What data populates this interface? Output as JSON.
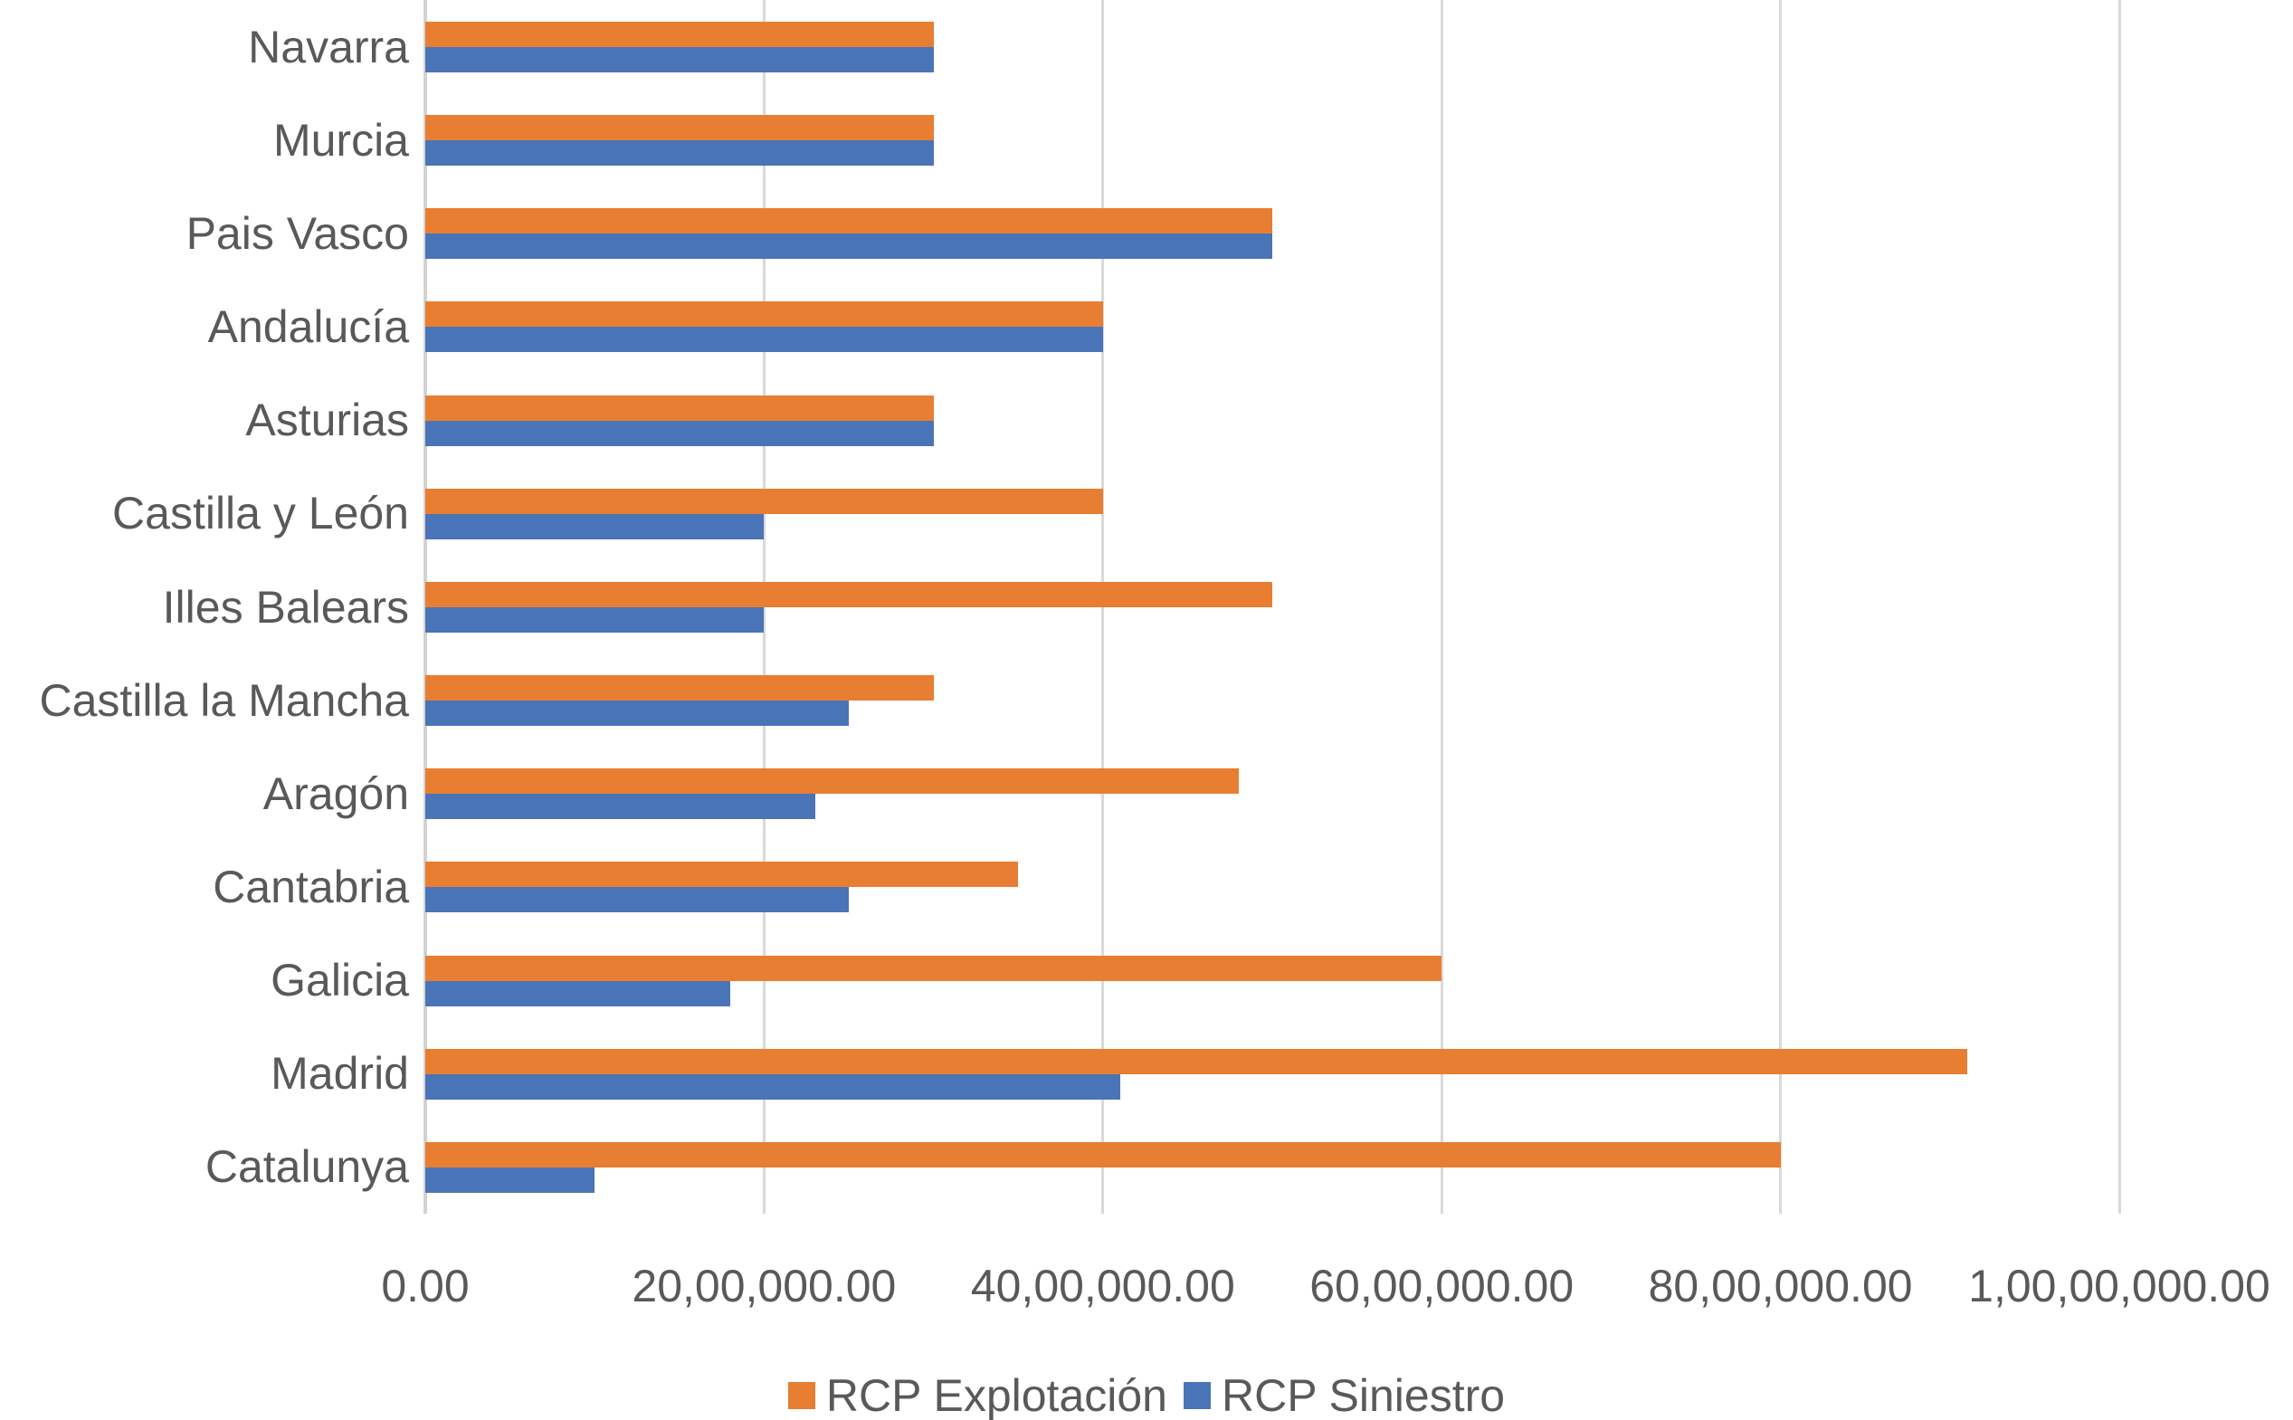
{
  "chart_data": {
    "type": "bar",
    "orientation": "horizontal",
    "title": "",
    "categories": [
      "Navarra",
      "Murcia",
      "Pais Vasco",
      "Andalucía",
      "Asturias",
      "Castilla y León",
      "Illes Balears",
      "Castilla la Mancha",
      "Aragón",
      "Cantabria",
      "Galicia",
      "Madrid",
      "Catalunya"
    ],
    "series": [
      {
        "name": "RCP Explotación",
        "color": "#e87e31",
        "values": [
          3000000,
          3000000,
          5000000,
          4000000,
          3000000,
          4000000,
          5000000,
          3000000,
          4800000,
          3500000,
          6000000,
          9100000,
          8000000
        ]
      },
      {
        "name": "RCP Siniestro",
        "color": "#4a74b8",
        "values": [
          3000000,
          3000000,
          5000000,
          4000000,
          3000000,
          2000000,
          2000000,
          2500000,
          2300000,
          2500000,
          1800000,
          4100000,
          1000000
        ]
      }
    ],
    "x_axis": {
      "min": 0,
      "max": 10000000,
      "tick_interval": 2000000,
      "tick_values": [
        0,
        2000000,
        4000000,
        6000000,
        8000000,
        10000000
      ],
      "tick_labels": [
        "0.00",
        "20,00,000.00",
        "40,00,000.00",
        "60,00,000.00",
        "80,00,000.00",
        "1,00,00,000.00"
      ],
      "number_format": "indian-grouping-two-decimals"
    },
    "gridlines": true,
    "legend_position": "bottom",
    "colors": {
      "text": "#595959",
      "gridline": "#d9d9d9",
      "background": "#ffffff"
    }
  }
}
